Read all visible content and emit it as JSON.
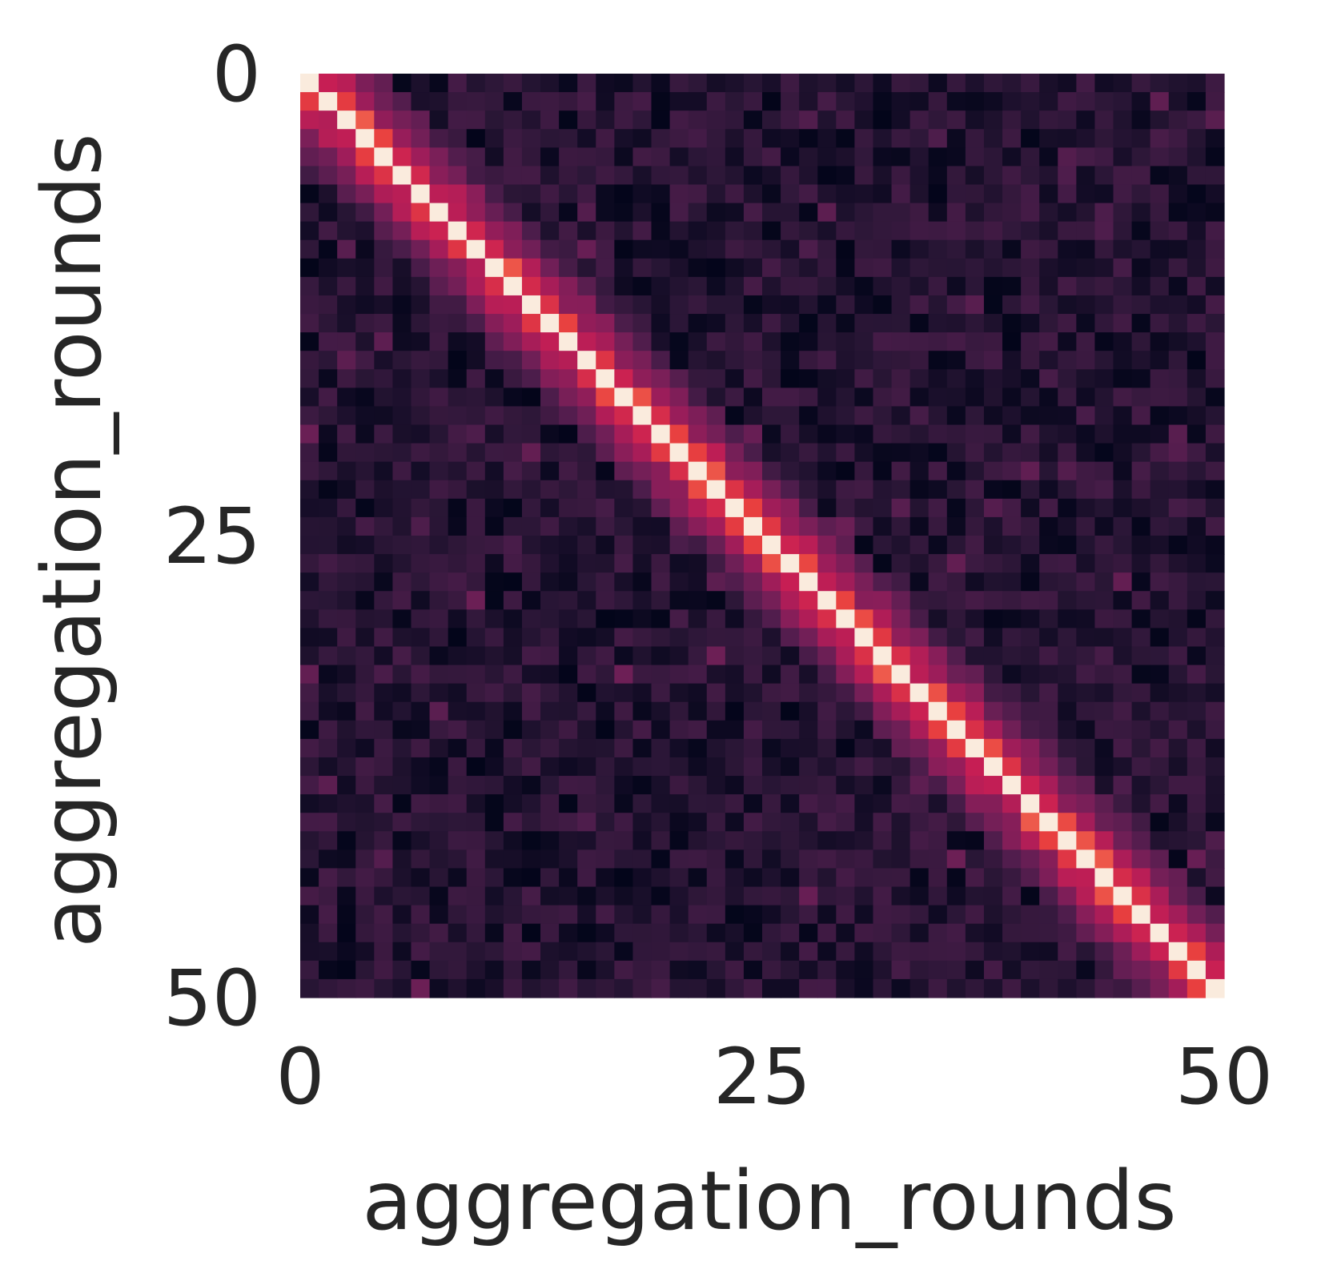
{
  "chart_data": {
    "type": "heatmap",
    "title": "",
    "xlabel": "aggregation_rounds",
    "ylabel": "aggregation_rounds",
    "x_ticks": [
      0,
      25,
      50
    ],
    "y_ticks": [
      0,
      25,
      50
    ],
    "x_tick_labels": [
      "0",
      "25",
      "50"
    ],
    "y_tick_labels": [
      "0",
      "25",
      "50"
    ],
    "rows": 50,
    "cols": 50,
    "xlim": [
      0,
      50
    ],
    "ylim": [
      0,
      50
    ],
    "colorbar": false,
    "colormap": "rocket",
    "color_stops": [
      "#03051a",
      "#2a1636",
      "#4c1d4b",
      "#711f57",
      "#9b1d5a",
      "#c71e54",
      "#e83f3f",
      "#f47a5a",
      "#f6b48f",
      "#faebdd"
    ],
    "value_range": [
      0,
      1
    ],
    "description_values": {
      "diagonal": 1.0,
      "first_offdiagonal": 0.5,
      "second_offdiagonal": 0.38,
      "third_offdiagonal": 0.3,
      "background": 0.1
    }
  }
}
